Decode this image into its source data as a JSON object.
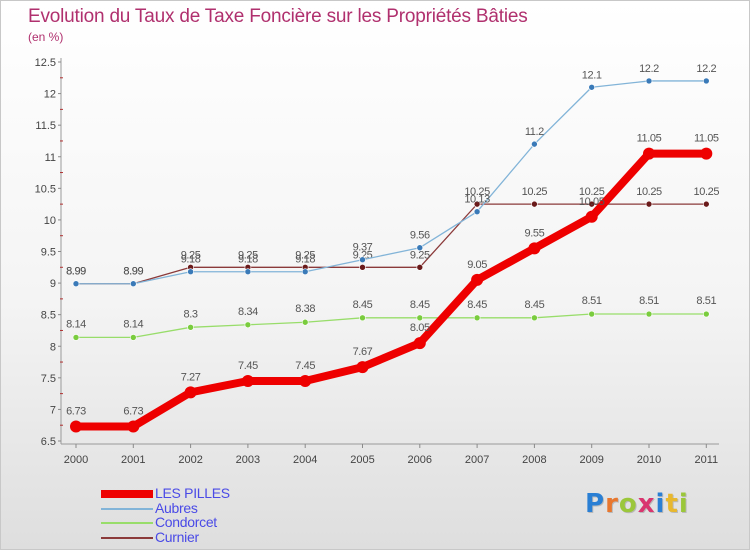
{
  "title": "Evolution du Taux de Taxe Foncière sur les Propriétés Bâties",
  "subtitle": "(en %)",
  "brand": {
    "letters": [
      "P",
      "r",
      "o",
      "x",
      "i",
      "t",
      "i"
    ],
    "colors": [
      "#2a7fd4",
      "#e8772e",
      "#9bc73a",
      "#d9356f",
      "#2a7fd4",
      "#e8b82e",
      "#9bc73a"
    ]
  },
  "chart_data": {
    "type": "line",
    "title": "Evolution du Taux de Taxe Foncière sur les Propriétés Bâties",
    "ylabel": "(en %)",
    "xlabel": "",
    "x": [
      "2000",
      "2001",
      "2002",
      "2003",
      "2004",
      "2005",
      "2006",
      "2007",
      "2008",
      "2009",
      "2010",
      "2011"
    ],
    "ylim": [
      6.5,
      12.5
    ],
    "yticks": [
      "6.5",
      "7",
      "7.5",
      "8",
      "8.5",
      "9",
      "9.5",
      "10",
      "10.5",
      "11",
      "11.5",
      "12",
      "12.5"
    ],
    "grid": false,
    "legend_position": "bottom-left",
    "series": [
      {
        "name": "Curnier",
        "color": "#8b3a3a",
        "point_color": "#6a1a1a",
        "weight": "thin",
        "values": [
          8.99,
          8.99,
          9.25,
          9.25,
          9.25,
          9.25,
          9.25,
          10.25,
          10.25,
          10.25,
          10.25,
          10.25
        ],
        "labels": [
          "8.99",
          "8.99",
          "9.25",
          "9.25",
          "9.25",
          "9.25",
          "9.25",
          "10.25",
          "10.25",
          "10.25",
          "10.25",
          "10.25"
        ]
      },
      {
        "name": "Condorcet",
        "color": "#98dd6a",
        "point_color": "#7acc3e",
        "weight": "thin",
        "values": [
          8.14,
          8.14,
          8.3,
          8.34,
          8.38,
          8.45,
          8.45,
          8.45,
          8.45,
          8.51,
          8.51,
          8.51
        ],
        "labels": [
          "8.14",
          "8.14",
          "8.3",
          "8.34",
          "8.38",
          "8.45",
          "8.45",
          "8.45",
          "8.45",
          "8.51",
          "8.51",
          "8.51"
        ]
      },
      {
        "name": "Aubres",
        "color": "#82b4d8",
        "point_color": "#3a7ab8",
        "weight": "thin",
        "values": [
          8.99,
          8.99,
          9.18,
          9.18,
          9.18,
          9.37,
          9.56,
          10.13,
          11.2,
          12.1,
          12.2,
          12.2
        ],
        "labels": [
          "8.99",
          "8.99",
          "9.18",
          "9.18",
          "9.18",
          "9.37",
          "9.56",
          "10.13",
          "11.2",
          "12.1",
          "12.2",
          "12.2"
        ]
      },
      {
        "name": "LES PILLES",
        "color": "#ee0000",
        "point_color": "#ee0000",
        "weight": "thick",
        "values": [
          6.73,
          6.73,
          7.27,
          7.45,
          7.45,
          7.67,
          8.05,
          9.05,
          9.55,
          10.05,
          11.05,
          11.05
        ],
        "labels": [
          "6.73",
          "6.73",
          "7.27",
          "7.45",
          "7.45",
          "7.67",
          "8.05",
          "9.05",
          "9.55",
          "10.05",
          "11.05",
          "11.05"
        ]
      }
    ],
    "legend_order": [
      "LES PILLES",
      "Aubres",
      "Condorcet",
      "Curnier"
    ]
  }
}
